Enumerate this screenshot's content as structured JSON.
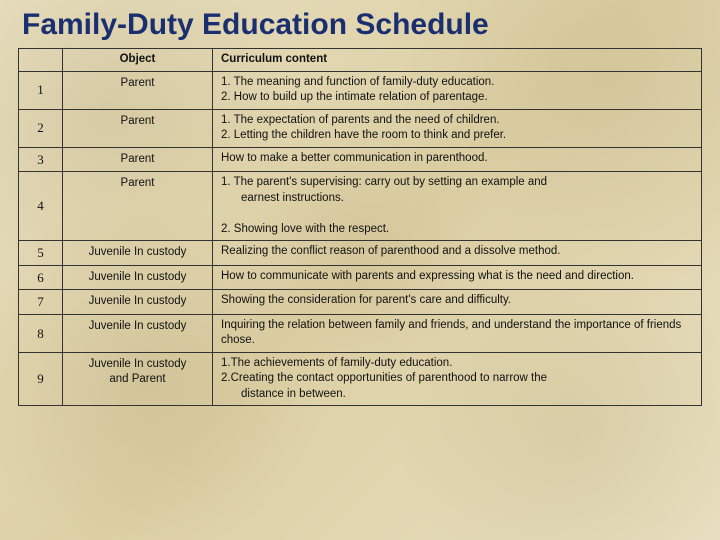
{
  "title": "Family-Duty Education Schedule",
  "columns": {
    "num": "",
    "object": "Object",
    "content": "Curriculum content"
  },
  "rows": [
    {
      "num": "1",
      "object": "Parent",
      "content": "1. The meaning and function of family-duty education.\n2. How to build up the intimate relation of parentage."
    },
    {
      "num": "2",
      "object": "Parent",
      "content": "1. The expectation of parents and the need of children.\n2. Letting the children have the room to think and prefer."
    },
    {
      "num": "3",
      "object": "Parent",
      "content": "How to make a better communication in parenthood."
    },
    {
      "num": "4",
      "object": "Parent",
      "content": "1. The parent's supervising: carry out by setting an example and\n        earnest instructions.\n2. Showing love with the respect."
    },
    {
      "num": "5",
      "object": "Juvenile In custody",
      "content": "Realizing the conflict reason of parenthood and a dissolve method."
    },
    {
      "num": "6",
      "object": "Juvenile In custody",
      "content": "How to communicate with parents and expressing  what is the need and direction."
    },
    {
      "num": "7",
      "object": "Juvenile In custody",
      "content": "Showing the consideration for parent's care and  difficulty."
    },
    {
      "num": "8",
      "object": "Juvenile In custody",
      "content": "Inquiring the relation between family and friends, and understand the importance of friends chose."
    },
    {
      "num": "9",
      "object": "Juvenile In custody\nand Parent",
      "content": "1.The achievements of family-duty education.\n2.Creating the contact opportunities of parenthood to narrow the\n   distance in between."
    }
  ],
  "style": {
    "title_color": "#1a2f6f",
    "title_fontsize": 30,
    "cell_fontsize": 11.5,
    "border_color": "#333333",
    "background_base": "#e3d8b5",
    "col_widths": {
      "num": 44,
      "object": 150
    }
  }
}
